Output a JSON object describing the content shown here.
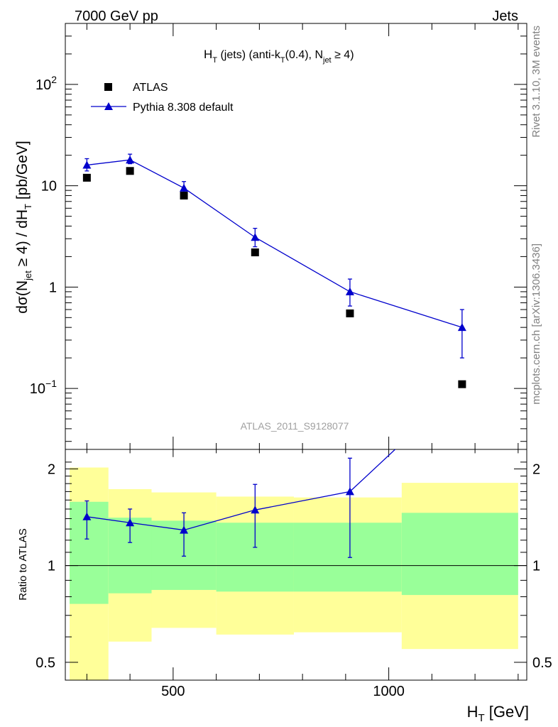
{
  "header": {
    "left": "7000 GeV pp",
    "right": "Jets"
  },
  "side_labels": {
    "rivet": "Rivet 3.1.10,  3M events",
    "mcplots": "mcplots.cern.ch [arXiv:1306.3436]"
  },
  "colors": {
    "data": "#000000",
    "mc": "#0000cc",
    "band_outer": "#ffff99",
    "band_inner": "#99ff99"
  },
  "chart_data": [
    {
      "type": "scatter",
      "title_parts": {
        "H": "H",
        "H_sub": "T",
        "mid": " (jets) (anti-k",
        "k_sub": "T",
        "mid2": "(0.4), N",
        "N_sub": "jet",
        "end": " ≥ 4)"
      },
      "ylabel_parts": {
        "a": "dσ(N",
        "a_sub": "jet",
        "b": " ≥ 4) / dH",
        "b_sub": "T",
        "c": " [pb/GeV]"
      },
      "yscale": "log",
      "ylim": [
        0.025,
        400
      ],
      "xlim": [
        250,
        1320
      ],
      "yticks": [
        {
          "value": 100,
          "base": "10",
          "exp": "2"
        },
        {
          "value": 10,
          "label": "10"
        },
        {
          "value": 1,
          "label": "1"
        },
        {
          "value": 0.1,
          "base": "10",
          "exp": "−1"
        }
      ],
      "watermark": "ATLAS_2011_S9128077",
      "legend": {
        "position": "top-left",
        "entries": [
          "ATLAS",
          "Pythia 8.308 default"
        ]
      },
      "series": [
        {
          "name": "ATLAS",
          "marker": "square",
          "x": [
            300,
            400,
            525,
            690,
            910,
            1170
          ],
          "y": [
            12,
            14,
            8,
            2.2,
            0.55,
            0.11
          ]
        },
        {
          "name": "Pythia 8.308 default",
          "marker": "triangle",
          "x": [
            300,
            400,
            525,
            690,
            910,
            1170
          ],
          "y": [
            16,
            18,
            9.5,
            3.1,
            0.9,
            0.4
          ],
          "err_low": [
            14,
            16.5,
            8.3,
            2.5,
            0.65,
            0.2
          ],
          "err_high": [
            18.5,
            20.5,
            11,
            3.8,
            1.2,
            0.6
          ]
        }
      ]
    },
    {
      "type": "line",
      "ylabel": "Ratio to ATLAS",
      "yscale": "log",
      "ylim": [
        0.44,
        2.3
      ],
      "xlim": [
        250,
        1320
      ],
      "yticks": [
        {
          "value": 2,
          "label": "2"
        },
        {
          "value": 1,
          "label": "1"
        },
        {
          "value": 0.5,
          "label": "0.5"
        }
      ],
      "xticks": [
        {
          "value": 500,
          "label": "500"
        },
        {
          "value": 1000,
          "label": "1000"
        }
      ],
      "xlabel_parts": {
        "a": "H",
        "a_sub": "T",
        "b": " [GeV]"
      },
      "reference": 1,
      "bands": [
        {
          "x0": 260,
          "x1": 350,
          "outer": [
            0.42,
            2.02
          ],
          "inner": [
            0.76,
            1.58
          ]
        },
        {
          "x0": 350,
          "x1": 450,
          "outer": [
            0.58,
            1.73
          ],
          "inner": [
            0.82,
            1.41
          ]
        },
        {
          "x0": 450,
          "x1": 600,
          "outer": [
            0.64,
            1.69
          ],
          "inner": [
            0.84,
            1.38
          ]
        },
        {
          "x0": 600,
          "x1": 780,
          "outer": [
            0.61,
            1.64
          ],
          "inner": [
            0.83,
            1.36
          ]
        },
        {
          "x0": 780,
          "x1": 1030,
          "outer": [
            0.62,
            1.63
          ],
          "inner": [
            0.83,
            1.36
          ]
        },
        {
          "x0": 1030,
          "x1": 1300,
          "outer": [
            0.55,
            1.81
          ],
          "inner": [
            0.81,
            1.46
          ]
        }
      ],
      "series": [
        {
          "name": "Pythia 8.308 default",
          "x": [
            300,
            400,
            525,
            690,
            910,
            1170
          ],
          "y": [
            1.42,
            1.36,
            1.29,
            1.49,
            1.7,
            3.6
          ],
          "err_low": [
            1.21,
            1.18,
            1.07,
            1.14,
            1.06
          ],
          "err_high": [
            1.59,
            1.5,
            1.46,
            1.79,
            2.16
          ]
        }
      ]
    }
  ]
}
